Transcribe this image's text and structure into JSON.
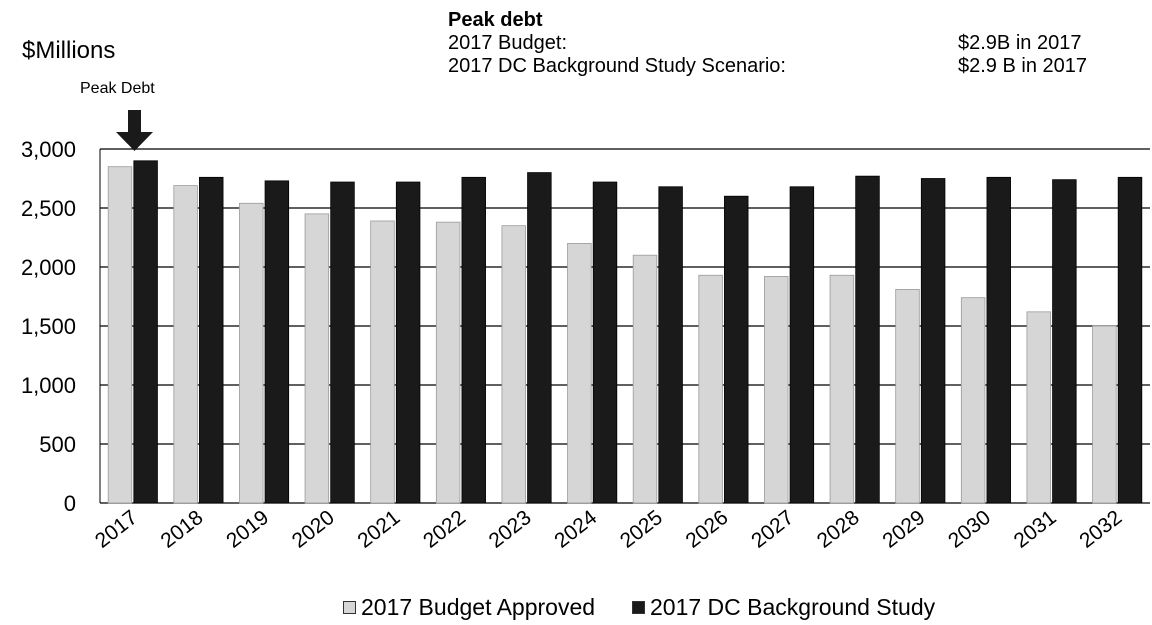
{
  "header": {
    "title": "Peak debt",
    "rows": [
      {
        "label": "2017 Budget:",
        "value": "$2.9B in 2017"
      },
      {
        "label": "2017 DC Background Study Scenario:",
        "value": "$2.9 B in 2017"
      }
    ]
  },
  "annotation": "Peak Debt",
  "chart_data": {
    "type": "bar",
    "ylabel": "$Millions",
    "ylim": [
      0,
      3000
    ],
    "yticks": [
      "0",
      "500",
      "1,000",
      "1,500",
      "2,000",
      "2,500",
      "3,000"
    ],
    "grid": true,
    "legend_position": "bottom",
    "categories": [
      "2017",
      "2018",
      "2019",
      "2020",
      "2021",
      "2022",
      "2023",
      "2024",
      "2025",
      "2026",
      "2027",
      "2028",
      "2029",
      "2030",
      "2031",
      "2032"
    ],
    "series": [
      {
        "name": "2017 Budget Approved",
        "color": "#d6d6d6",
        "values": [
          2850,
          2690,
          2540,
          2450,
          2390,
          2380,
          2350,
          2200,
          2100,
          1930,
          1920,
          1930,
          1810,
          1740,
          1620,
          1500
        ]
      },
      {
        "name": "2017 DC Background Study",
        "color": "#1a1a1a",
        "values": [
          2900,
          2760,
          2730,
          2720,
          2720,
          2760,
          2800,
          2720,
          2680,
          2600,
          2680,
          2770,
          2750,
          2760,
          2740,
          2760
        ]
      }
    ]
  }
}
